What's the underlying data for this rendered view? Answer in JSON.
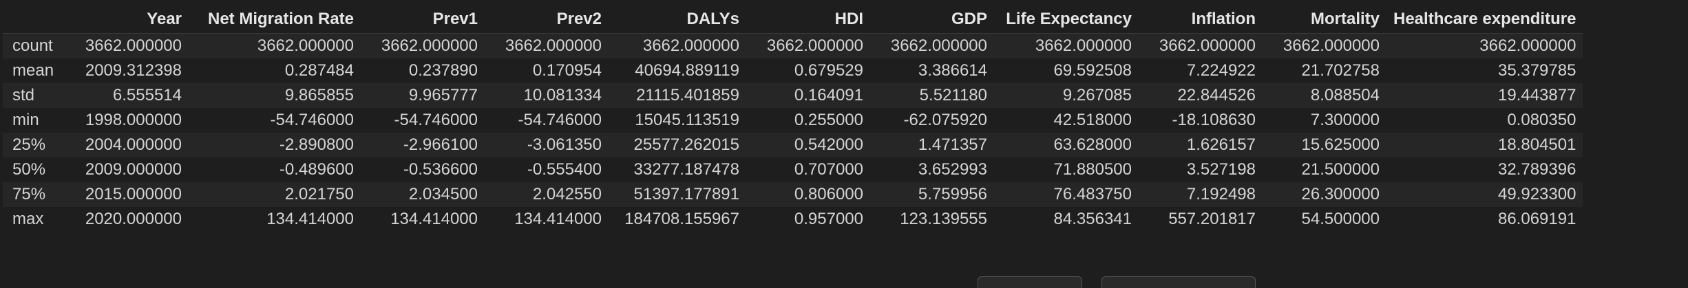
{
  "table": {
    "columns": [
      "",
      "Year",
      "Net Migration Rate",
      "Prev1",
      "Prev2",
      "DALYs",
      "HDI",
      "GDP",
      "Life Expectancy",
      "Inflation",
      "Mortality",
      "Healthcare expenditure"
    ],
    "rows": [
      {
        "index": "count",
        "values": [
          "3662.000000",
          "3662.000000",
          "3662.000000",
          "3662.000000",
          "3662.000000",
          "3662.000000",
          "3662.000000",
          "3662.000000",
          "3662.000000",
          "3662.000000",
          "3662.000000"
        ]
      },
      {
        "index": "mean",
        "values": [
          "2009.312398",
          "0.287484",
          "0.237890",
          "0.170954",
          "40694.889119",
          "0.679529",
          "3.386614",
          "69.592508",
          "7.224922",
          "21.702758",
          "35.379785"
        ]
      },
      {
        "index": "std",
        "values": [
          "6.555514",
          "9.865855",
          "9.965777",
          "10.081334",
          "21115.401859",
          "0.164091",
          "5.521180",
          "9.267085",
          "22.844526",
          "8.088504",
          "19.443877"
        ]
      },
      {
        "index": "min",
        "values": [
          "1998.000000",
          "-54.746000",
          "-54.746000",
          "-54.746000",
          "15045.113519",
          "0.255000",
          "-62.075920",
          "42.518000",
          "-18.108630",
          "7.300000",
          "0.080350"
        ]
      },
      {
        "index": "25%",
        "values": [
          "2004.000000",
          "-2.890800",
          "-2.966100",
          "-3.061350",
          "25577.262015",
          "0.542000",
          "1.471357",
          "63.628000",
          "1.626157",
          "15.625000",
          "18.804501"
        ]
      },
      {
        "index": "50%",
        "values": [
          "2009.000000",
          "-0.489600",
          "-0.536600",
          "-0.555400",
          "33277.187478",
          "0.707000",
          "3.652993",
          "71.880500",
          "3.527198",
          "21.500000",
          "32.789396"
        ]
      },
      {
        "index": "75%",
        "values": [
          "2015.000000",
          "2.021750",
          "2.034500",
          "2.042550",
          "51397.177891",
          "0.806000",
          "5.759956",
          "76.483750",
          "7.192498",
          "26.300000",
          "49.923300"
        ]
      },
      {
        "index": "max",
        "values": [
          "2020.000000",
          "134.414000",
          "134.414000",
          "134.414000",
          "184708.155967",
          "0.957000",
          "123.139555",
          "84.356341",
          "557.201817",
          "54.500000",
          "86.069191"
        ]
      }
    ]
  }
}
